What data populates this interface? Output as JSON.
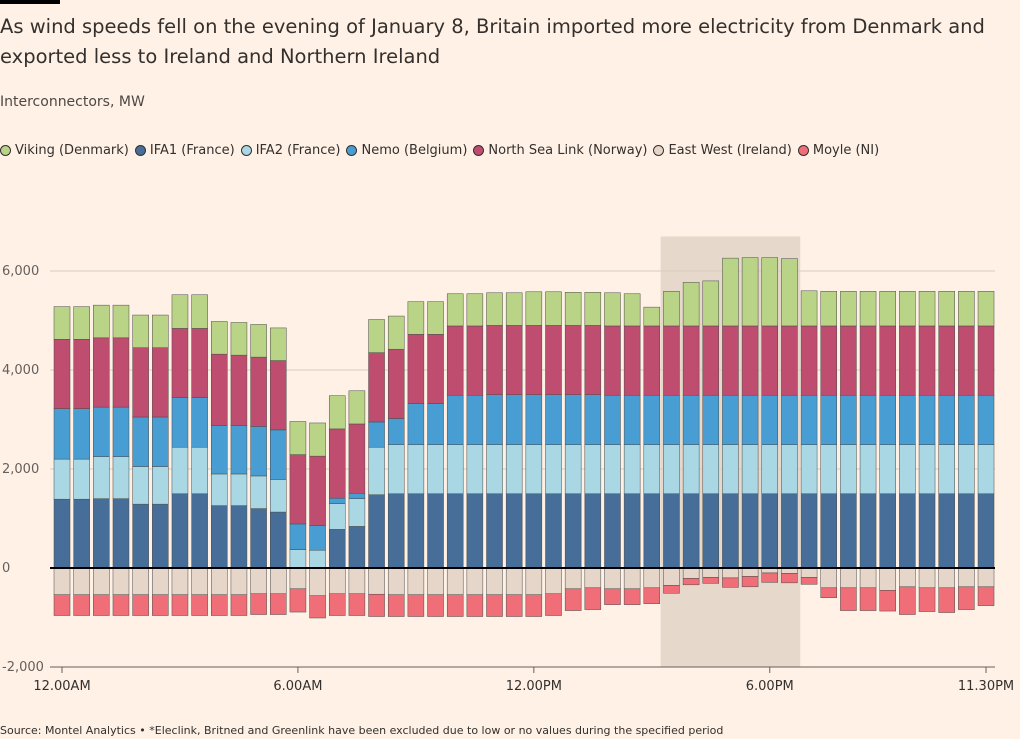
{
  "title": "As wind speeds fell on the evening of January 8, Britain imported more electricity from Denmark and exported less to Ireland and Northern Ireland",
  "subtitle": "Interconnectors, MW",
  "source": "Source: Montel Analytics • *Eleclink, Britned and Greenlink have been excluded due to low or no values during the specified period",
  "legend": [
    {
      "name": "Viking (Denmark)",
      "color": "#B9D486"
    },
    {
      "name": "IFA1 (France)",
      "color": "#466E98"
    },
    {
      "name": "IFA2 (France)",
      "color": "#A9D8E4"
    },
    {
      "name": "Nemo (Belgium)",
      "color": "#489ED3"
    },
    {
      "name": "North Sea Link (Norway)",
      "color": "#BF4D70"
    },
    {
      "name": "East West (Ireland)",
      "color": "#E6D6C9"
    },
    {
      "name": "Moyle (NI)",
      "color": "#F06E78"
    }
  ],
  "chart_data": {
    "type": "bar",
    "stacked": true,
    "ylim": [
      -2000,
      7000
    ],
    "yticks": [
      -2000,
      0,
      2000,
      4000,
      6000
    ],
    "ytick_labels": [
      "-2,000",
      "0",
      "2,000",
      "4,000",
      "6,000"
    ],
    "xtick_labels": [
      "12.00AM",
      "6.00AM",
      "12.00PM",
      "6.00PM",
      "11.30PM"
    ],
    "xtick_index": [
      0,
      12,
      24,
      36,
      47
    ],
    "highlight_range": [
      31,
      37
    ],
    "categories": [
      "12.00AM",
      "12.30AM",
      "1.00AM",
      "1.30AM",
      "2.00AM",
      "2.30AM",
      "3.00AM",
      "3.30AM",
      "4.00AM",
      "4.30AM",
      "5.00AM",
      "5.30AM",
      "6.00AM",
      "6.30AM",
      "7.00AM",
      "7.30AM",
      "8.00AM",
      "8.30AM",
      "9.00AM",
      "9.30AM",
      "10.00AM",
      "10.30AM",
      "11.00AM",
      "11.30AM",
      "12.00PM",
      "12.30PM",
      "1.00PM",
      "1.30PM",
      "2.00PM",
      "2.30PM",
      "3.00PM",
      "3.30PM",
      "4.00PM",
      "4.30PM",
      "5.00PM",
      "5.30PM",
      "6.00PM",
      "6.30PM",
      "7.00PM",
      "7.30PM",
      "8.00PM",
      "8.30PM",
      "9.00PM",
      "9.30PM",
      "10.00PM",
      "10.30PM",
      "11.00PM",
      "11.30PM"
    ],
    "series": [
      {
        "name": "IFA1 (France)",
        "color": "#466E98",
        "values": [
          1390,
          1390,
          1400,
          1400,
          1290,
          1290,
          1500,
          1500,
          1260,
          1260,
          1200,
          1130,
          0,
          0,
          780,
          840,
          1480,
          1500,
          1500,
          1500,
          1500,
          1500,
          1500,
          1500,
          1500,
          1500,
          1500,
          1500,
          1500,
          1500,
          1500,
          1500,
          1500,
          1500,
          1500,
          1500,
          1500,
          1500,
          1500,
          1500,
          1500,
          1500,
          1500,
          1500,
          1500,
          1500,
          1500,
          1500
        ]
      },
      {
        "name": "IFA2 (France)",
        "color": "#A9D8E4",
        "values": [
          810,
          810,
          850,
          850,
          760,
          760,
          940,
          940,
          640,
          640,
          660,
          660,
          370,
          360,
          520,
          560,
          960,
          990,
          990,
          990,
          990,
          990,
          990,
          990,
          990,
          990,
          990,
          990,
          990,
          990,
          990,
          990,
          990,
          990,
          990,
          990,
          990,
          990,
          990,
          990,
          990,
          990,
          990,
          990,
          990,
          990,
          990,
          990
        ]
      },
      {
        "name": "Nemo (Belgium)",
        "color": "#489ED3",
        "values": [
          1020,
          1020,
          1000,
          1000,
          1000,
          1000,
          1000,
          1000,
          980,
          980,
          1000,
          1000,
          520,
          500,
          110,
          110,
          510,
          530,
          830,
          830,
          1000,
          1000,
          1010,
          1010,
          1010,
          1010,
          1010,
          1010,
          1000,
          1000,
          1000,
          1000,
          1000,
          1000,
          1000,
          1000,
          1000,
          1000,
          1000,
          1000,
          1000,
          1000,
          1000,
          1000,
          1000,
          1000,
          1000,
          1000
        ]
      },
      {
        "name": "North Sea Link (Norway)",
        "color": "#BF4D70",
        "values": [
          1400,
          1400,
          1400,
          1400,
          1400,
          1400,
          1400,
          1400,
          1440,
          1420,
          1400,
          1400,
          1400,
          1400,
          1400,
          1400,
          1400,
          1400,
          1400,
          1400,
          1400,
          1400,
          1400,
          1400,
          1400,
          1400,
          1400,
          1400,
          1400,
          1400,
          1400,
          1400,
          1400,
          1400,
          1400,
          1400,
          1400,
          1400,
          1400,
          1400,
          1400,
          1400,
          1400,
          1400,
          1400,
          1400,
          1400,
          1400
        ]
      },
      {
        "name": "Viking (Denmark)",
        "color": "#B9D486",
        "values": [
          660,
          660,
          660,
          660,
          660,
          660,
          680,
          680,
          660,
          660,
          660,
          660,
          670,
          670,
          670,
          670,
          670,
          670,
          660,
          660,
          650,
          650,
          660,
          660,
          680,
          680,
          670,
          670,
          670,
          650,
          380,
          700,
          880,
          910,
          1370,
          1380,
          1380,
          1360,
          710,
          700,
          700,
          700,
          700,
          700,
          700,
          700,
          700,
          700
        ]
      },
      {
        "name": "East West (Ireland)",
        "color": "#E6D6C9",
        "values": [
          -540,
          -540,
          -540,
          -540,
          -540,
          -540,
          -540,
          -540,
          -540,
          -540,
          -520,
          -520,
          -420,
          -560,
          -520,
          -520,
          -530,
          -540,
          -540,
          -540,
          -540,
          -540,
          -540,
          -540,
          -540,
          -520,
          -420,
          -400,
          -420,
          -420,
          -400,
          -350,
          -210,
          -190,
          -200,
          -170,
          -100,
          -110,
          -190,
          -400,
          -400,
          -400,
          -450,
          -380,
          -400,
          -400,
          -380,
          -380
        ]
      },
      {
        "name": "Moyle (NI)",
        "color": "#F06E78",
        "values": [
          -420,
          -420,
          -420,
          -420,
          -420,
          -420,
          -420,
          -420,
          -420,
          -420,
          -420,
          -420,
          -470,
          -450,
          -440,
          -440,
          -450,
          -440,
          -440,
          -440,
          -440,
          -440,
          -440,
          -440,
          -440,
          -440,
          -440,
          -440,
          -320,
          -320,
          -320,
          -160,
          -130,
          -120,
          -190,
          -210,
          -190,
          -190,
          -140,
          -200,
          -460,
          -460,
          -420,
          -560,
          -480,
          -500,
          -460,
          -380
        ]
      }
    ]
  }
}
